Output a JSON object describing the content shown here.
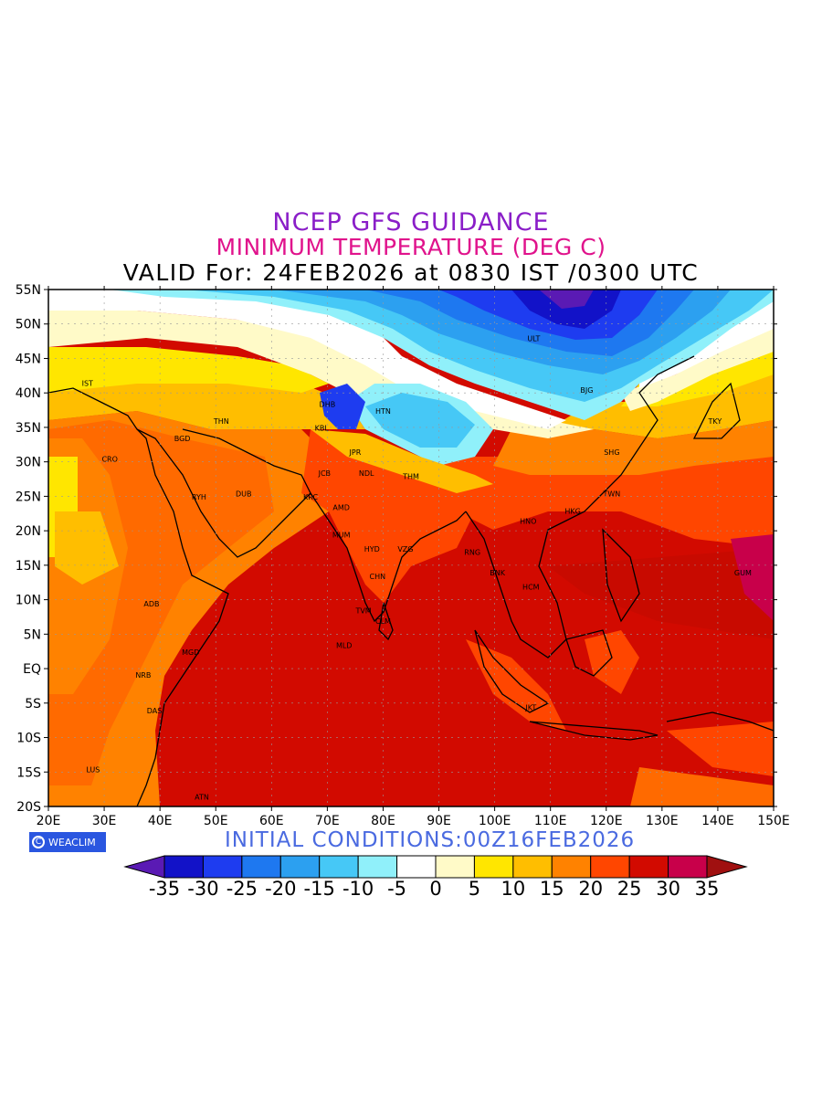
{
  "header": {
    "title": "NCEP GFS GUIDANCE",
    "subtitle": "MINIMUM TEMPERATURE (DEG C)",
    "valid": "VALID For: 24FEB2026 at 0830 IST /0300 UTC"
  },
  "footer": {
    "logo_text": "WEACLIM",
    "logo_symbol": "C",
    "init": "INITIAL CONDITIONS:00Z16FEB2026"
  },
  "axes": {
    "lon_labels": [
      "20E",
      "30E",
      "40E",
      "50E",
      "60E",
      "70E",
      "80E",
      "90E",
      "100E",
      "110E",
      "120E",
      "130E",
      "140E",
      "150E"
    ],
    "lat_labels": [
      "55N",
      "50N",
      "45N",
      "40N",
      "35N",
      "30N",
      "25N",
      "20N",
      "15N",
      "10N",
      "5N",
      "EQ",
      "5S",
      "10S",
      "15S",
      "20S"
    ],
    "lon_range": [
      20,
      150
    ],
    "lat_range": [
      -20,
      55
    ]
  },
  "colorbar": {
    "labels": [
      "-35",
      "-30",
      "-25",
      "-20",
      "-15",
      "-10",
      "-5",
      "0",
      "5",
      "10",
      "15",
      "20",
      "25",
      "30",
      "35"
    ],
    "colors": [
      "#5a1ab4",
      "#1212c8",
      "#1e3cf0",
      "#1e78f0",
      "#2ca0f0",
      "#46c8f6",
      "#90f0fa",
      "#ffffff",
      "#fffac8",
      "#ffe600",
      "#ffbe00",
      "#ff8200",
      "#ff4600",
      "#d20a00",
      "#c8004a",
      "#a01010"
    ]
  },
  "cities": [
    {
      "code": "IST",
      "lon": 27,
      "lat": 41
    },
    {
      "code": "DHB",
      "lon": 70,
      "lat": 38
    },
    {
      "code": "HTN",
      "lon": 80,
      "lat": 37
    },
    {
      "code": "KBL",
      "lon": 69,
      "lat": 34.5
    },
    {
      "code": "THN",
      "lon": 51,
      "lat": 35.5
    },
    {
      "code": "BGD",
      "lon": 44,
      "lat": 33
    },
    {
      "code": "CRO",
      "lon": 31,
      "lat": 30
    },
    {
      "code": "RYH",
      "lon": 47,
      "lat": 24.5
    },
    {
      "code": "DUB",
      "lon": 55,
      "lat": 25
    },
    {
      "code": "JCB",
      "lon": 69.5,
      "lat": 28
    },
    {
      "code": "KRC",
      "lon": 67,
      "lat": 24.5
    },
    {
      "code": "AMD",
      "lon": 72.5,
      "lat": 23
    },
    {
      "code": "NDL",
      "lon": 77,
      "lat": 28
    },
    {
      "code": "JPR",
      "lon": 75,
      "lat": 31
    },
    {
      "code": "THM",
      "lon": 85,
      "lat": 27.5
    },
    {
      "code": "MUM",
      "lon": 72.5,
      "lat": 19
    },
    {
      "code": "HYD",
      "lon": 78,
      "lat": 17
    },
    {
      "code": "VZG",
      "lon": 84,
      "lat": 17
    },
    {
      "code": "CHN",
      "lon": 79,
      "lat": 13
    },
    {
      "code": "TVM",
      "lon": 76.5,
      "lat": 8
    },
    {
      "code": "CLM",
      "lon": 80,
      "lat": 6.5
    },
    {
      "code": "MLD",
      "lon": 73,
      "lat": 3
    },
    {
      "code": "RNG",
      "lon": 96,
      "lat": 16.5
    },
    {
      "code": "BNK",
      "lon": 100.5,
      "lat": 13.5
    },
    {
      "code": "HCM",
      "lon": 106.5,
      "lat": 11.5
    },
    {
      "code": "HNO",
      "lon": 106,
      "lat": 21
    },
    {
      "code": "HKG",
      "lon": 114,
      "lat": 22.5
    },
    {
      "code": "TWN",
      "lon": 121,
      "lat": 25
    },
    {
      "code": "SHG",
      "lon": 121,
      "lat": 31
    },
    {
      "code": "BJG",
      "lon": 116.5,
      "lat": 40
    },
    {
      "code": "ULT",
      "lon": 107,
      "lat": 47.5
    },
    {
      "code": "TKY",
      "lon": 139.5,
      "lat": 35.5
    },
    {
      "code": "GUM",
      "lon": 144.5,
      "lat": 13.5
    },
    {
      "code": "ADB",
      "lon": 38.5,
      "lat": 9
    },
    {
      "code": "MGD",
      "lon": 45.5,
      "lat": 2
    },
    {
      "code": "NRB",
      "lon": 37,
      "lat": -1.3
    },
    {
      "code": "DAS",
      "lon": 39,
      "lat": -6.5
    },
    {
      "code": "LUS",
      "lon": 28,
      "lat": -15
    },
    {
      "code": "ATN",
      "lon": 47.5,
      "lat": -19
    },
    {
      "code": "JKT",
      "lon": 106.5,
      "lat": -6
    }
  ]
}
